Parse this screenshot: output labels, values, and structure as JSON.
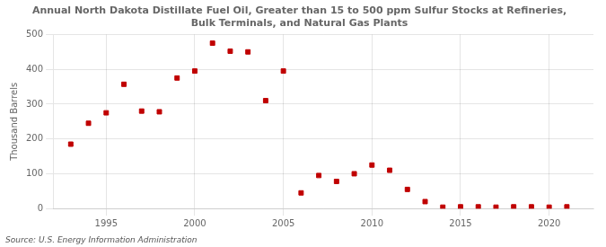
{
  "chart_data": {
    "type": "scatter",
    "title": "Annual North Dakota Distillate Fuel Oil, Greater than 15 to 500 ppm Sulfur Stocks at Refineries,\nBulk Terminals, and Natural Gas Plants",
    "ylabel": "Thousand Barrels",
    "annotation": "Source: U.S. Energy Information Administration",
    "x": [
      1993,
      1994,
      1995,
      1996,
      1997,
      1998,
      1999,
      2000,
      2001,
      2002,
      2003,
      2004,
      2005,
      2006,
      2007,
      2008,
      2009,
      2010,
      2011,
      2012,
      2013,
      2014,
      2015,
      2016,
      2017,
      2018,
      2019,
      2020,
      2021
    ],
    "values": [
      185,
      245,
      275,
      357,
      280,
      278,
      375,
      395,
      475,
      452,
      450,
      310,
      395,
      45,
      95,
      78,
      100,
      125,
      110,
      55,
      20,
      4,
      5,
      5,
      4,
      5,
      5,
      4,
      5
    ],
    "color": "#c00000",
    "marker": "square",
    "xlim": [
      1992.0,
      2022.5
    ],
    "ylim": [
      0,
      500
    ],
    "xticks": [
      1995,
      2000,
      2005,
      2010,
      2015,
      2020
    ],
    "yticks": [
      0,
      100,
      200,
      300,
      400,
      500
    ],
    "grid": true
  }
}
